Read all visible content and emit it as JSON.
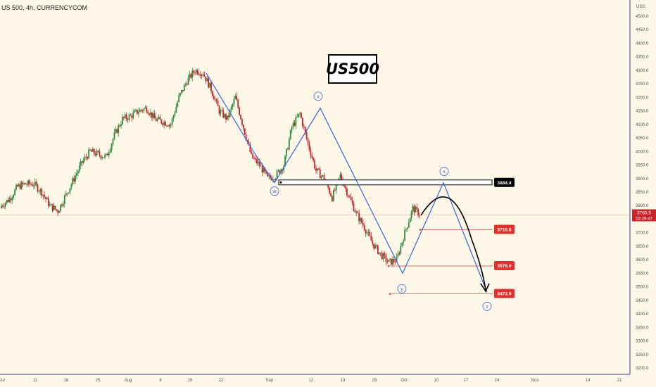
{
  "header": {
    "symbol": "US 500, 4h, CURRENCYCOM"
  },
  "annotation_title": "US500",
  "colors": {
    "up": "#2e8b3d",
    "down": "#c8232c",
    "wave": "#3c63d6",
    "price_line": "#e05a52",
    "background": "#fdf7e8"
  },
  "chart_data": {
    "type": "candlestick",
    "ylabel": "USD",
    "ylim": [
      3180,
      4560
    ],
    "y_ticks": [
      3200,
      3250,
      3300,
      3350,
      3400,
      3450,
      3500,
      3550,
      3600,
      3650,
      3700,
      3750,
      3800,
      3850,
      3900,
      3950,
      4000,
      4050,
      4100,
      4150,
      4200,
      4250,
      4300,
      4350,
      4400,
      4450,
      4500
    ],
    "x_ticks": [
      "Jul",
      "11",
      "18",
      "25",
      "Aug",
      "8",
      "15",
      "22",
      "Sep",
      "12",
      "19",
      "26",
      "Oct",
      "10",
      "17",
      "24",
      "Nov",
      "14",
      "21"
    ],
    "price_path": [
      [
        3790,
        3800
      ],
      [
        3810,
        3825
      ],
      [
        3850,
        3870
      ],
      [
        3840,
        3880
      ],
      [
        3870,
        3880
      ],
      [
        3860,
        3850
      ],
      [
        3830,
        3800
      ],
      [
        3760,
        3780
      ],
      [
        3820,
        3840
      ],
      [
        3860,
        3900
      ],
      [
        3930,
        3960
      ],
      [
        3980,
        4000
      ],
      [
        3960,
        3990
      ],
      [
        3950,
        3980
      ],
      [
        4010,
        4060
      ],
      [
        4090,
        4120
      ],
      [
        4100,
        4130
      ],
      [
        4110,
        4150
      ],
      [
        4140,
        4160
      ],
      [
        4150,
        4120
      ],
      [
        4160,
        4110
      ],
      [
        4130,
        4100
      ],
      [
        4160,
        4200
      ],
      [
        4250,
        4260
      ],
      [
        4280,
        4300
      ],
      [
        4310,
        4290
      ],
      [
        4250,
        4230
      ],
      [
        4200,
        4150
      ],
      [
        4130,
        4120
      ],
      [
        4150,
        4200
      ],
      [
        4190,
        4090
      ],
      [
        4050,
        3980
      ],
      [
        3980,
        3950
      ],
      [
        3920,
        3900
      ],
      [
        3920,
        3910
      ],
      [
        3900,
        3950
      ],
      [
        4000,
        4090
      ],
      [
        4110,
        4140
      ],
      [
        4080,
        4030
      ],
      [
        3950,
        3930
      ],
      [
        3910,
        3900
      ],
      [
        3870,
        3830
      ],
      [
        3890,
        3910
      ],
      [
        3880,
        3840
      ],
      [
        3800,
        3770
      ],
      [
        3740,
        3720
      ],
      [
        3680,
        3660
      ],
      [
        3640,
        3620
      ],
      [
        3660,
        3590
      ],
      [
        3570,
        3600
      ],
      [
        3640,
        3700
      ],
      [
        3750,
        3790
      ],
      [
        3780,
        3765
      ]
    ],
    "series": [
      {
        "name": "",
        "type": "wave",
        "labels": [
          "w",
          "x",
          "y",
          "x",
          "z"
        ],
        "values": [
          3885,
          4160,
          3550,
          3885,
          3480
        ]
      }
    ],
    "horizontal_levels": [
      {
        "label": "3884.4",
        "value": 3884.4
      },
      {
        "label": "3710.8",
        "value": 3710.8
      },
      {
        "label": "3576.9",
        "value": 3576.9
      },
      {
        "label": "3473.9",
        "value": 3473.9
      }
    ],
    "last_price": {
      "value": "3765.5",
      "countdown": "02:29:47"
    }
  }
}
